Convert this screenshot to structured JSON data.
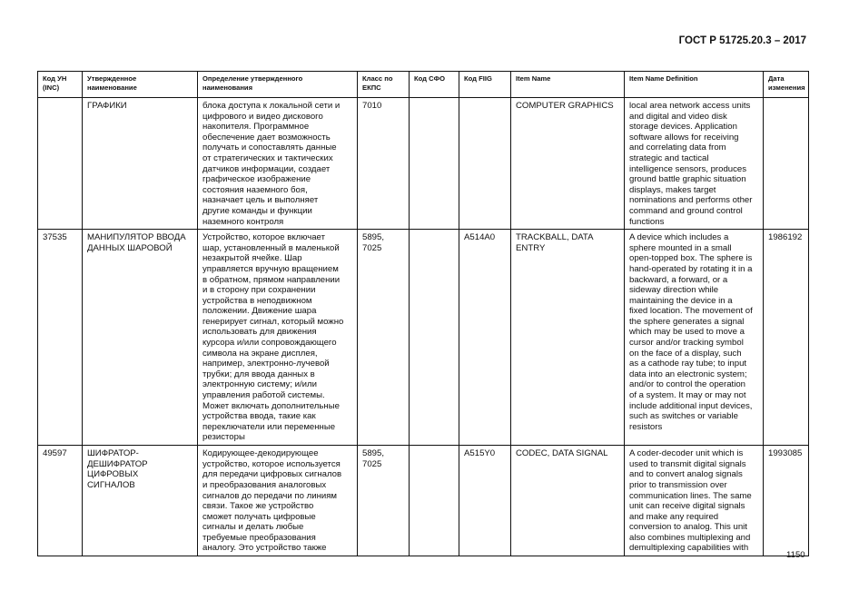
{
  "doc_title": "ГОСТ Р 51725.20.3 – 2017",
  "page_number": "1150",
  "columns": [
    "Код УН\n(INC)",
    "Утвержденное\nнаименование",
    "Определение утвержденного\nнаименования",
    "Класс по\nЕКПС",
    "Код СФО",
    "Код FIIG",
    "Item Name",
    "Item Name Definition",
    "Дата\nизменения"
  ],
  "rows": [
    {
      "inc": "",
      "name": "ГРАФИКИ",
      "definition": "блока доступа к локальной сети и\nцифрового и видео дискового\nнакопителя. Программное\nобеспечение дает возможность\nполучать и сопоставлять данные\nот стратегических и тактических\nдатчиков информации, создает\nграфическое изображение\nсостояния наземного боя,\nназначает цель и выполняет\nдругие команды и функции\nназемного контроля",
      "class": "7010",
      "sfo": "",
      "fiig": "",
      "item_name": "COMPUTER GRAPHICS",
      "item_def": "local area network access units\nand digital and video disk\nstorage devices. Application\nsoftware allows for receiving\nand correlating data from\nstrategic and tactical\nintelligence sensors, produces\nground battle graphic situation\ndisplays, makes target\nnominations and performs other\ncommand and ground control\nfunctions",
      "date": ""
    },
    {
      "inc": "37535",
      "name": "МАНИПУЛЯТОР ВВОДА\nДАННЫХ ШАРОВОЙ",
      "definition": "Устройство, которое включает\nшар, установленный в маленькой\nнезакрытой ячейке. Шар\nуправляется вручную вращением\nв обратном, прямом направлении\nи в сторону при сохранении\nустройства в неподвижном\nположении. Движение шара\nгенерирует сигнал, который можно\nиспользовать для движения\nкурсора и/или сопровождающего\nсимвола на экране дисплея,\nнапример, электронно-лучевой\nтрубки; для ввода данных в\nэлектронную систему; и/или\nуправления работой системы.\nМожет включать дополнительные\nустройства ввода, такие как\nпереключатели или переменные\nрезисторы",
      "class": "5895,\n7025",
      "sfo": "",
      "fiig": "A514A0",
      "item_name": "TRACKBALL, DATA\nENTRY",
      "item_def": "A device which includes a\nsphere mounted in a small\nopen-topped box. The sphere is\nhand-operated by rotating it in a\nbackward, a forward, or a\nsideway direction while\nmaintaining the device in a\nfixed location. The movement of\nthe sphere generates a signal\nwhich may be used to move a\ncursor and/or tracking symbol\non the face of a display, such\nas a cathode ray tube; to input\ndata into an electronic system;\nand/or to control the operation\nof a system. It may or may not\ninclude additional input devices,\nsuch as switches or variable\nresistors",
      "date": "1986192"
    },
    {
      "inc": "49597",
      "name": "ШИФРАТОР-\nДЕШИФРАТОР\nЦИФРОВЫХ\nСИГНАЛОВ",
      "definition": "Кодирующее-декодирующее\nустройство, которое используется\nдля передачи цифровых сигналов\nи преобразования аналоговых\nсигналов до передачи по линиям\nсвязи. Такое же устройство\nсможет получать цифровые\nсигналы и делать любые\nтребуемые преобразования\nаналогу. Это устройство также",
      "class": "5895,\n7025",
      "sfo": "",
      "fiig": "A515Y0",
      "item_name": "CODEC, DATA SIGNAL",
      "item_def": "A coder-decoder unit which is\nused to transmit digital signals\nand to convert analog signals\nprior to transmission over\ncommunication lines. The same\nunit can receive digital signals\nand make any required\nconversion to analog. This unit\nalso combines multiplexing and\ndemultiplexing capabilities with",
      "date": "1993085"
    }
  ]
}
